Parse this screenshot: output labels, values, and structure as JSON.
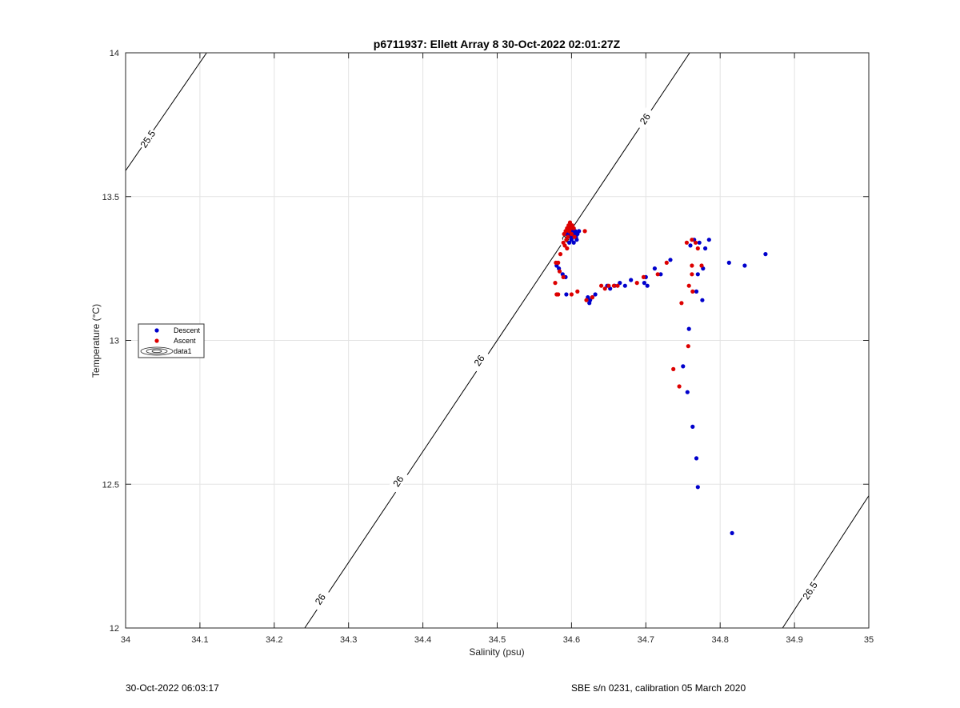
{
  "chart_data": {
    "type": "scatter",
    "title": "p6711937: Ellett Array 8 30-Oct-2022 02:01:27Z",
    "xlabel": "Salinity (psu)",
    "ylabel": "Temperature (°C)",
    "xlim": [
      34,
      35
    ],
    "ylim": [
      12,
      14
    ],
    "xticks": [
      "34",
      "34.1",
      "34.2",
      "34.3",
      "34.4",
      "34.5",
      "34.6",
      "34.7",
      "34.8",
      "34.9",
      "35"
    ],
    "yticks": [
      "12",
      "12.5",
      "13",
      "13.5",
      "14"
    ],
    "grid": true,
    "legend_position": "left-middle",
    "legend": [
      "Descent",
      "Ascent",
      "data1"
    ],
    "density_contours": [
      {
        "label": "25.5",
        "points": [
          [
            34.0,
            13.59
          ],
          [
            34.109,
            14.0
          ]
        ]
      },
      {
        "label": "26",
        "points": [
          [
            34.241,
            12.0
          ],
          [
            34.759,
            14.0
          ]
        ]
      },
      {
        "label": "26.5",
        "points": [
          [
            34.884,
            12.0
          ],
          [
            35.0,
            12.46
          ]
        ]
      }
    ],
    "contour_labels": [
      {
        "text": "25.5",
        "x": 34.03,
        "y": 13.7
      },
      {
        "text": "26",
        "x": 34.699,
        "y": 13.77
      },
      {
        "text": "26",
        "x": 34.476,
        "y": 12.93
      },
      {
        "text": "26",
        "x": 34.367,
        "y": 12.51
      },
      {
        "text": "26",
        "x": 34.594,
        "y": 13.36
      },
      {
        "text": "26",
        "x": 34.262,
        "y": 12.1
      },
      {
        "text": "26.5",
        "x": 34.921,
        "y": 12.13
      }
    ],
    "series": [
      {
        "name": "Descent",
        "color": "#0000cc",
        "points": [
          [
            34.596,
            13.39
          ],
          [
            34.598,
            13.37
          ],
          [
            34.6,
            13.35
          ],
          [
            34.602,
            13.36
          ],
          [
            34.604,
            13.37
          ],
          [
            34.606,
            13.36
          ],
          [
            34.608,
            13.37
          ],
          [
            34.61,
            13.38
          ],
          [
            34.597,
            13.34
          ],
          [
            34.599,
            13.36
          ],
          [
            34.605,
            13.38
          ],
          [
            34.601,
            13.38
          ],
          [
            34.603,
            13.34
          ],
          [
            34.607,
            13.35
          ],
          [
            34.593,
            13.37
          ],
          [
            34.58,
            13.26
          ],
          [
            34.583,
            13.25
          ],
          [
            34.588,
            13.23
          ],
          [
            34.592,
            13.22
          ],
          [
            34.593,
            13.16
          ],
          [
            34.622,
            13.15
          ],
          [
            34.625,
            13.14
          ],
          [
            34.628,
            13.15
          ],
          [
            34.624,
            13.13
          ],
          [
            34.632,
            13.16
          ],
          [
            34.648,
            13.19
          ],
          [
            34.652,
            13.18
          ],
          [
            34.658,
            13.19
          ],
          [
            34.665,
            13.2
          ],
          [
            34.672,
            13.19
          ],
          [
            34.68,
            13.21
          ],
          [
            34.698,
            13.2
          ],
          [
            34.7,
            13.22
          ],
          [
            34.702,
            13.19
          ],
          [
            34.712,
            13.25
          ],
          [
            34.72,
            13.23
          ],
          [
            34.733,
            13.28
          ],
          [
            34.76,
            13.33
          ],
          [
            34.765,
            13.35
          ],
          [
            34.772,
            13.34
          ],
          [
            34.777,
            13.25
          ],
          [
            34.78,
            13.32
          ],
          [
            34.785,
            13.35
          ],
          [
            34.77,
            13.23
          ],
          [
            34.768,
            13.17
          ],
          [
            34.776,
            13.14
          ],
          [
            34.812,
            13.27
          ],
          [
            34.833,
            13.26
          ],
          [
            34.861,
            13.3
          ],
          [
            34.758,
            13.04
          ],
          [
            34.75,
            12.91
          ],
          [
            34.756,
            12.82
          ],
          [
            34.763,
            12.7
          ],
          [
            34.768,
            12.59
          ],
          [
            34.77,
            12.49
          ],
          [
            34.816,
            12.33
          ]
        ]
      },
      {
        "name": "Ascent",
        "color": "#dd0000",
        "points": [
          [
            34.59,
            13.37
          ],
          [
            34.592,
            13.38
          ],
          [
            34.594,
            13.39
          ],
          [
            34.596,
            13.4
          ],
          [
            34.598,
            13.41
          ],
          [
            34.595,
            13.36
          ],
          [
            34.597,
            13.38
          ],
          [
            34.599,
            13.39
          ],
          [
            34.601,
            13.4
          ],
          [
            34.593,
            13.35
          ],
          [
            34.6,
            13.37
          ],
          [
            34.604,
            13.36
          ],
          [
            34.591,
            13.33
          ],
          [
            34.589,
            13.34
          ],
          [
            34.603,
            13.39
          ],
          [
            34.618,
            13.38
          ],
          [
            34.594,
            13.32
          ],
          [
            34.585,
            13.3
          ],
          [
            34.579,
            13.27
          ],
          [
            34.582,
            13.27
          ],
          [
            34.584,
            13.24
          ],
          [
            34.589,
            13.22
          ],
          [
            34.578,
            13.2
          ],
          [
            34.58,
            13.16
          ],
          [
            34.582,
            13.16
          ],
          [
            34.6,
            13.16
          ],
          [
            34.608,
            13.17
          ],
          [
            34.62,
            13.14
          ],
          [
            34.628,
            13.15
          ],
          [
            34.64,
            13.19
          ],
          [
            34.645,
            13.18
          ],
          [
            34.65,
            13.19
          ],
          [
            34.657,
            13.19
          ],
          [
            34.662,
            13.19
          ],
          [
            34.688,
            13.2
          ],
          [
            34.697,
            13.22
          ],
          [
            34.716,
            13.23
          ],
          [
            34.728,
            13.27
          ],
          [
            34.755,
            13.34
          ],
          [
            34.762,
            13.35
          ],
          [
            34.767,
            13.34
          ],
          [
            34.77,
            13.32
          ],
          [
            34.762,
            13.26
          ],
          [
            34.775,
            13.26
          ],
          [
            34.762,
            13.23
          ],
          [
            34.758,
            13.19
          ],
          [
            34.763,
            13.17
          ],
          [
            34.748,
            13.13
          ],
          [
            34.757,
            12.98
          ],
          [
            34.737,
            12.9
          ],
          [
            34.745,
            12.84
          ]
        ]
      }
    ]
  },
  "footer": {
    "left": "30-Oct-2022 06:03:17",
    "right": "SBE s/n 0231, calibration 05 March 2020"
  }
}
